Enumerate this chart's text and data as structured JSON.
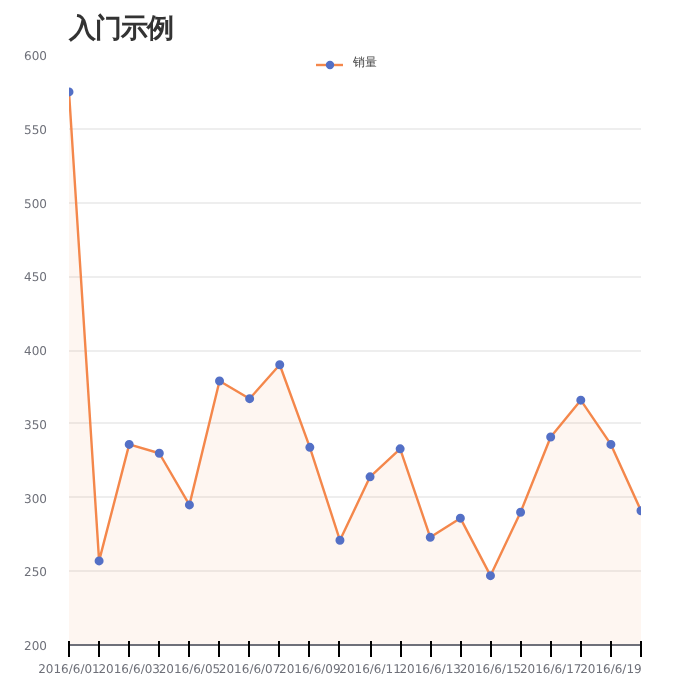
{
  "chart_data": {
    "type": "area",
    "title": "入门示例",
    "categories": [
      "2016/6/01",
      null,
      "2016/6/03",
      null,
      "2016/6/05",
      null,
      "2016/6/07",
      null,
      "2016/6/09",
      null,
      "2016/6/11",
      null,
      "2016/6/13",
      null,
      "2016/6/15",
      null,
      "2016/6/17",
      null,
      "2016/6/19",
      null
    ],
    "series": [
      {
        "name": "销量",
        "color": "#f4874b",
        "values": [
          575,
          257,
          336,
          330,
          295,
          379,
          367,
          390,
          334,
          271,
          314,
          333,
          273,
          286,
          247,
          290,
          341,
          366,
          336,
          291
        ]
      }
    ],
    "ylim": [
      200,
      600
    ],
    "yticks": [
      200,
      250,
      300,
      350,
      400,
      450,
      500,
      550,
      600
    ],
    "grid": "y",
    "legend": "top",
    "marker": "circle"
  }
}
